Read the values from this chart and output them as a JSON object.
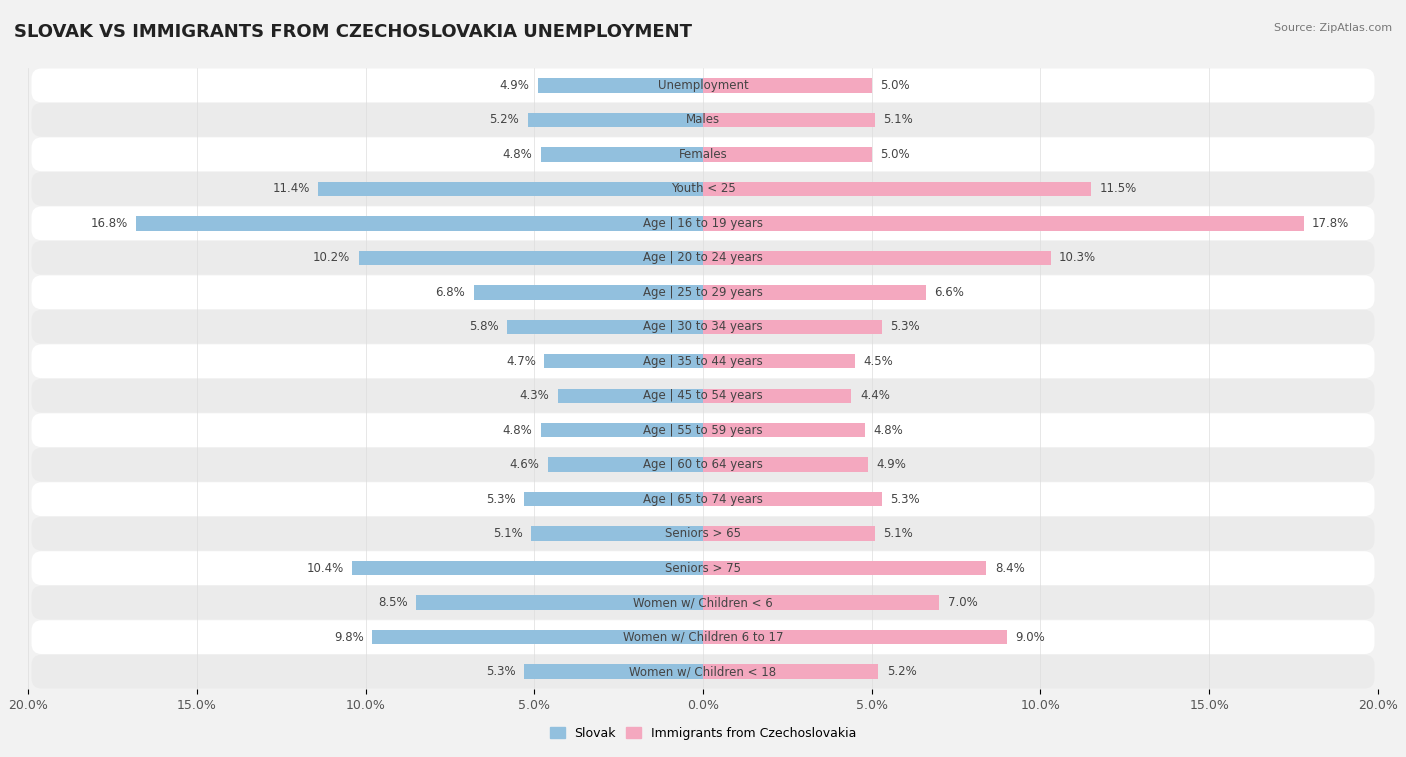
{
  "title": "SLOVAK VS IMMIGRANTS FROM CZECHOSLOVAKIA UNEMPLOYMENT",
  "source": "Source: ZipAtlas.com",
  "categories": [
    "Unemployment",
    "Males",
    "Females",
    "Youth < 25",
    "Age | 16 to 19 years",
    "Age | 20 to 24 years",
    "Age | 25 to 29 years",
    "Age | 30 to 34 years",
    "Age | 35 to 44 years",
    "Age | 45 to 54 years",
    "Age | 55 to 59 years",
    "Age | 60 to 64 years",
    "Age | 65 to 74 years",
    "Seniors > 65",
    "Seniors > 75",
    "Women w/ Children < 6",
    "Women w/ Children 6 to 17",
    "Women w/ Children < 18"
  ],
  "slovak": [
    4.9,
    5.2,
    4.8,
    11.4,
    16.8,
    10.2,
    6.8,
    5.8,
    4.7,
    4.3,
    4.8,
    4.6,
    5.3,
    5.1,
    10.4,
    8.5,
    9.8,
    5.3
  ],
  "immigrants": [
    5.0,
    5.1,
    5.0,
    11.5,
    17.8,
    10.3,
    6.6,
    5.3,
    4.5,
    4.4,
    4.8,
    4.9,
    5.3,
    5.1,
    8.4,
    7.0,
    9.0,
    5.2
  ],
  "slovak_color": "#92c0de",
  "immigrant_color": "#f4a8bf",
  "axis_limit": 20.0,
  "bg_color": "#f2f2f2",
  "row_bg_white": "#ffffff",
  "row_bg_gray": "#ebebeb",
  "bar_height": 0.42,
  "title_fontsize": 13,
  "label_fontsize": 8.5,
  "tick_fontsize": 9,
  "value_fontsize": 8.5
}
